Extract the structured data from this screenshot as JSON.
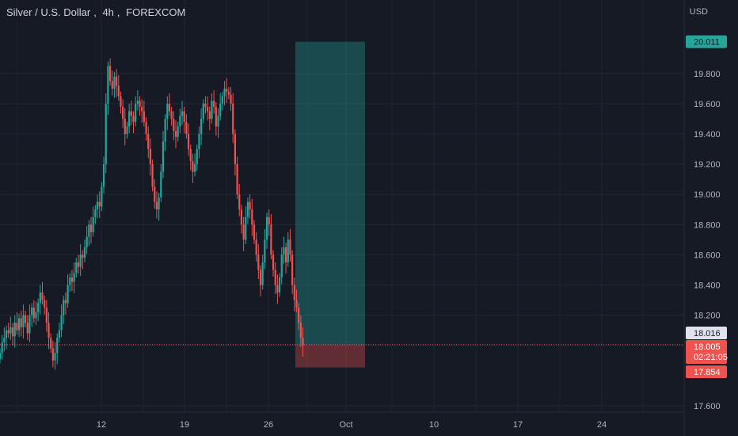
{
  "header": {
    "symbol_name": "Silver / U.S. Dollar",
    "timeframe": "4h",
    "exchange": "FOREXCOM",
    "currency": "USD"
  },
  "price_tags": {
    "target": "20.011",
    "current_marker": "18.016",
    "last": "18.005",
    "countdown": "02:21:05",
    "stop": "17.854"
  },
  "colors": {
    "background": "#161a25",
    "up_candle": "#26a69a",
    "down_candle": "#ef5350",
    "target_zone": "#26a69a",
    "stop_zone": "#ef5350",
    "grid": "#232733"
  },
  "chart_data": {
    "type": "candlestick",
    "title": "Silver / U.S. Dollar, 4h, FOREXCOM",
    "y_axis": {
      "ticks": [
        "20.011",
        "19.800",
        "19.600",
        "19.400",
        "19.200",
        "19.000",
        "18.800",
        "18.600",
        "18.400",
        "18.200",
        "18.000",
        "17.600"
      ],
      "range": [
        17.55,
        20.35
      ]
    },
    "x_axis": {
      "tick_labels": [
        "12",
        "19",
        "26",
        "Oct",
        "10",
        "17",
        "24"
      ]
    },
    "closes": [
      17.95,
      18.02,
      18.05,
      18.1,
      18.08,
      18.12,
      18.06,
      18.15,
      18.1,
      18.18,
      18.12,
      18.2,
      18.15,
      18.08,
      18.2,
      18.25,
      18.18,
      18.22,
      18.28,
      18.35,
      18.3,
      18.25,
      18.15,
      18.05,
      17.98,
      17.9,
      17.95,
      18.05,
      18.1,
      18.2,
      18.3,
      18.28,
      18.4,
      18.45,
      18.42,
      18.48,
      18.55,
      18.52,
      18.6,
      18.58,
      18.65,
      18.72,
      18.8,
      18.75,
      18.85,
      18.9,
      18.95,
      18.92,
      19.05,
      19.2,
      19.6,
      19.85,
      19.75,
      19.7,
      19.78,
      19.72,
      19.65,
      19.58,
      19.5,
      19.4,
      19.45,
      19.55,
      19.52,
      19.48,
      19.6,
      19.62,
      19.58,
      19.55,
      19.48,
      19.4,
      19.3,
      19.2,
      19.05,
      18.95,
      18.9,
      18.98,
      19.15,
      19.35,
      19.5,
      19.6,
      19.55,
      19.5,
      19.42,
      19.38,
      19.45,
      19.52,
      19.55,
      19.48,
      19.4,
      19.3,
      19.22,
      19.15,
      19.2,
      19.3,
      19.4,
      19.5,
      19.6,
      19.58,
      19.55,
      19.5,
      19.62,
      19.58,
      19.45,
      19.52,
      19.6,
      19.65,
      19.7,
      19.68,
      19.66,
      19.6,
      19.4,
      19.2,
      19.0,
      18.9,
      18.8,
      18.7,
      18.85,
      18.95,
      18.9,
      18.8,
      18.7,
      18.6,
      18.5,
      18.4,
      18.55,
      18.7,
      18.85,
      18.8,
      18.6,
      18.5,
      18.4,
      18.35,
      18.45,
      18.6,
      18.65,
      18.55,
      18.7,
      18.6,
      18.4,
      18.3,
      18.25,
      18.15,
      18.05,
      18.0
    ],
    "position": {
      "target": 20.011,
      "entry": 18.005,
      "stop": 17.854
    },
    "last_price": 18.005
  }
}
